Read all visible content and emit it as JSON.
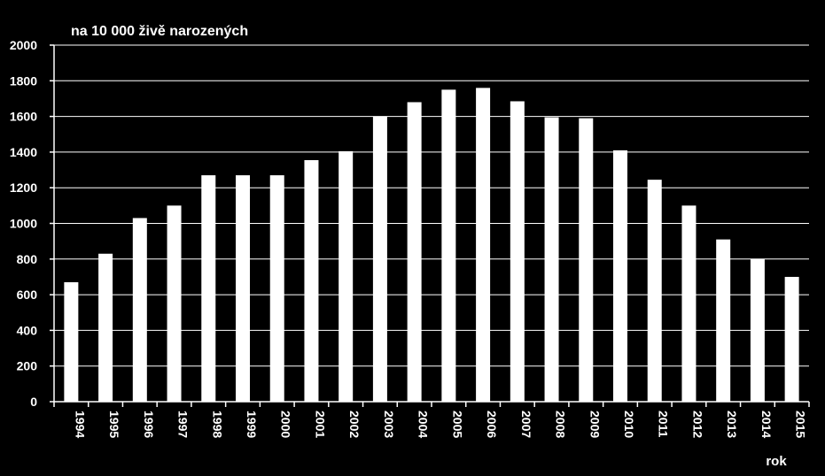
{
  "chart_data": {
    "type": "bar",
    "ylabel": "na 10 000 živě narozených",
    "xlabel": "rok",
    "categories": [
      "1994",
      "1995",
      "1996",
      "1997",
      "1998",
      "1999",
      "2000",
      "2001",
      "2002",
      "2003",
      "2004",
      "2005",
      "2006",
      "2007",
      "2008",
      "2009",
      "2010",
      "2011",
      "2012",
      "2013",
      "2014",
      "2015"
    ],
    "values": [
      670,
      830,
      1030,
      1100,
      1270,
      1270,
      1270,
      1355,
      1405,
      1600,
      1680,
      1750,
      1760,
      1685,
      1595,
      1590,
      1410,
      1245,
      1100,
      910,
      800,
      700
    ],
    "ylim": [
      0,
      2000
    ],
    "yticks": [
      0,
      200,
      400,
      600,
      800,
      1000,
      1200,
      1400,
      1600,
      1800,
      2000
    ],
    "grid": true,
    "colors": {
      "background": "#000000",
      "bar": "#ffffff",
      "grid": "#ffffff",
      "text": "#ffffff"
    }
  }
}
